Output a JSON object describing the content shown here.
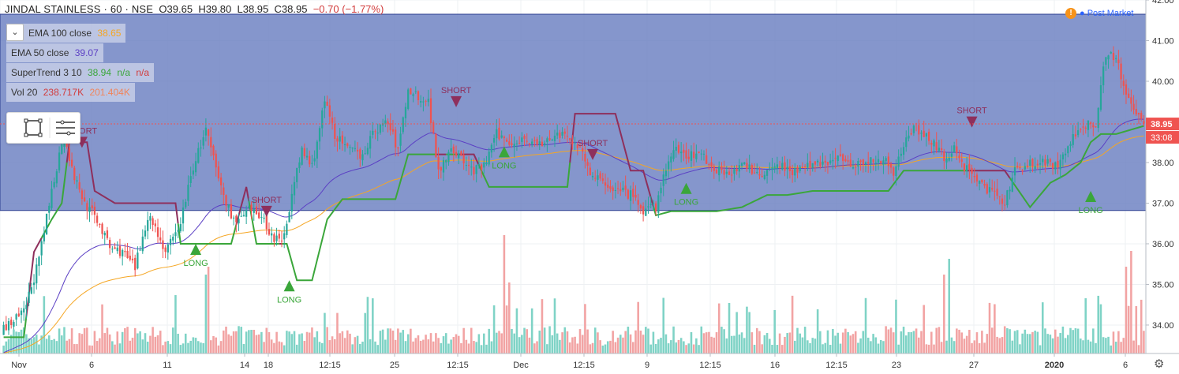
{
  "header": {
    "symbol": "JINDAL STAINLESS · 60 · NSE",
    "open_label": "O",
    "open": "39.65",
    "high_label": "H",
    "high": "39.80",
    "low_label": "L",
    "low": "38.95",
    "close_label": "C",
    "close": "38.95",
    "change": "−0.70 (−1.77%)"
  },
  "indicators": [
    {
      "name": "EMA 100 close",
      "values": [
        "38.65"
      ],
      "colors": [
        "#f5a623"
      ]
    },
    {
      "name": "EMA 50 close",
      "values": [
        "39.07"
      ],
      "colors": [
        "#5b3fc4"
      ]
    },
    {
      "name": "SuperTrend 3 10",
      "values": [
        "38.94",
        "n/a",
        "n/a"
      ],
      "colors": [
        "#3aa63a",
        "#3aa63a",
        "#d23b3b"
      ]
    },
    {
      "name": "Vol 20",
      "values": [
        "238.717K",
        "201.404K"
      ],
      "colors": [
        "#d23b3b",
        "#f0845a"
      ]
    }
  ],
  "status": {
    "post_market": "Post Market",
    "warning_glyph": "!"
  },
  "icons": {
    "collapse": "chevron-down-icon",
    "rectangle_tool": "rectangle-icon",
    "menu": "menu-lines-icon",
    "settings": "gear-icon"
  },
  "colors": {
    "up": "#26a69a",
    "down": "#ef5350",
    "rect_fill": "#6a7fc1",
    "ema100": "#f5a623",
    "ema50": "#5b3fc4",
    "st_up": "#3aa63a",
    "st_down": "#8e2f5c",
    "vol_up": "#7fd3c6",
    "vol_down": "#f2a3a3"
  },
  "chart_data": {
    "type": "candlestick",
    "y_range": [
      33.3,
      42.0
    ],
    "y_ticks": [
      "42.00",
      "41.00",
      "40.00",
      "39.00",
      "38.00",
      "37.00",
      "36.00",
      "35.00",
      "34.00"
    ],
    "x_tick_labels": [
      "Nov",
      "6",
      "11",
      "14",
      "18",
      "12:15",
      "25",
      "12:15",
      "Dec",
      "12:15",
      "9",
      "12:15",
      "16",
      "12:15",
      "23",
      "27",
      "2020",
      "6"
    ],
    "price_labels": {
      "last": "38.95",
      "countdown": "33:08"
    },
    "rectangle": {
      "top": 41.65,
      "bottom": 36.82
    },
    "close_waypoints": [
      [
        0,
        33.9
      ],
      [
        8,
        34.3
      ],
      [
        14,
        35.6
      ],
      [
        19,
        37.3
      ],
      [
        24,
        38.8
      ],
      [
        27,
        37.8
      ],
      [
        32,
        37.0
      ],
      [
        37,
        36.6
      ],
      [
        42,
        35.9
      ],
      [
        47,
        35.8
      ],
      [
        52,
        35.4
      ],
      [
        57,
        36.7
      ],
      [
        60,
        36.4
      ],
      [
        64,
        35.8
      ],
      [
        69,
        36.3
      ],
      [
        75,
        37.9
      ],
      [
        80,
        38.8
      ],
      [
        85,
        37.6
      ],
      [
        88,
        37.0
      ],
      [
        92,
        36.5
      ],
      [
        97,
        36.8
      ],
      [
        102,
        36.7
      ],
      [
        106,
        36.2
      ],
      [
        110,
        36.0
      ],
      [
        114,
        37.2
      ],
      [
        118,
        38.3
      ],
      [
        122,
        37.9
      ],
      [
        127,
        39.5
      ],
      [
        131,
        38.7
      ],
      [
        136,
        38.3
      ],
      [
        142,
        38.2
      ],
      [
        147,
        38.8
      ],
      [
        152,
        39.0
      ],
      [
        156,
        38.3
      ],
      [
        160,
        39.8
      ],
      [
        165,
        39.6
      ],
      [
        168,
        39.5
      ],
      [
        172,
        37.8
      ],
      [
        177,
        38.4
      ],
      [
        182,
        38.0
      ],
      [
        186,
        37.8
      ],
      [
        190,
        37.9
      ],
      [
        195,
        38.7
      ],
      [
        200,
        38.5
      ],
      [
        206,
        38.6
      ],
      [
        213,
        38.4
      ],
      [
        218,
        38.7
      ],
      [
        223,
        38.6
      ],
      [
        228,
        38.4
      ],
      [
        233,
        37.6
      ],
      [
        238,
        37.5
      ],
      [
        243,
        37.3
      ],
      [
        248,
        37.2
      ],
      [
        253,
        36.8
      ],
      [
        258,
        36.9
      ],
      [
        262,
        37.9
      ],
      [
        266,
        38.3
      ],
      [
        270,
        38.2
      ],
      [
        276,
        38.2
      ],
      [
        282,
        37.8
      ],
      [
        288,
        37.8
      ],
      [
        294,
        37.9
      ],
      [
        300,
        37.7
      ],
      [
        306,
        38.0
      ],
      [
        312,
        37.8
      ],
      [
        318,
        37.9
      ],
      [
        324,
        38.0
      ],
      [
        330,
        38.1
      ],
      [
        336,
        38.0
      ],
      [
        342,
        38.0
      ],
      [
        348,
        38.1
      ],
      [
        352,
        37.8
      ],
      [
        356,
        38.4
      ],
      [
        360,
        38.9
      ],
      [
        364,
        38.7
      ],
      [
        368,
        38.5
      ],
      [
        372,
        38.1
      ],
      [
        376,
        38.3
      ],
      [
        380,
        37.9
      ],
      [
        384,
        37.7
      ],
      [
        388,
        37.4
      ],
      [
        392,
        37.2
      ],
      [
        396,
        37.0
      ],
      [
        400,
        37.8
      ],
      [
        406,
        38.0
      ],
      [
        412,
        38.0
      ],
      [
        417,
        37.9
      ],
      [
        422,
        38.5
      ],
      [
        427,
        38.9
      ],
      [
        432,
        39.0
      ],
      [
        436,
        40.7
      ],
      [
        440,
        40.6
      ],
      [
        443,
        39.8
      ],
      [
        448,
        39.3
      ],
      [
        451,
        38.95
      ]
    ],
    "supertrend_waypoints": [
      [
        0,
        33.7
      ],
      [
        8,
        33.7
      ],
      [
        12,
        35.8
      ],
      [
        19,
        36.6
      ],
      [
        23,
        37.0
      ],
      [
        26,
        38.5
      ],
      [
        33,
        38.5
      ],
      [
        36,
        37.3
      ],
      [
        44,
        37.0
      ],
      [
        52,
        37.0
      ],
      [
        60,
        37.0
      ],
      [
        68,
        37.0
      ],
      [
        70,
        36.0
      ],
      [
        82,
        36.0
      ],
      [
        90,
        36.0
      ],
      [
        96,
        37.4
      ],
      [
        100,
        36.0
      ],
      [
        108,
        36.0
      ],
      [
        112,
        36.0
      ],
      [
        116,
        35.1
      ],
      [
        122,
        35.1
      ],
      [
        128,
        36.6
      ],
      [
        134,
        37.1
      ],
      [
        140,
        37.1
      ],
      [
        146,
        37.1
      ],
      [
        155,
        37.1
      ],
      [
        160,
        38.2
      ],
      [
        170,
        38.2
      ],
      [
        176,
        38.2
      ],
      [
        180,
        38.2
      ],
      [
        186,
        38.2
      ],
      [
        192,
        37.4
      ],
      [
        203,
        37.4
      ],
      [
        210,
        37.4
      ],
      [
        218,
        37.4
      ],
      [
        223,
        37.4
      ],
      [
        226,
        39.2
      ],
      [
        236,
        39.2
      ],
      [
        242,
        39.2
      ],
      [
        248,
        37.8
      ],
      [
        253,
        37.8
      ],
      [
        258,
        36.7
      ],
      [
        264,
        36.8
      ],
      [
        272,
        36.8
      ],
      [
        282,
        36.8
      ],
      [
        292,
        36.9
      ],
      [
        302,
        37.2
      ],
      [
        310,
        37.2
      ],
      [
        320,
        37.3
      ],
      [
        330,
        37.3
      ],
      [
        340,
        37.3
      ],
      [
        350,
        37.3
      ],
      [
        356,
        37.8
      ],
      [
        366,
        37.8
      ],
      [
        376,
        37.8
      ],
      [
        386,
        37.8
      ],
      [
        396,
        37.8
      ],
      [
        406,
        36.9
      ],
      [
        414,
        37.5
      ],
      [
        420,
        37.7
      ],
      [
        426,
        38.0
      ],
      [
        430,
        38.5
      ],
      [
        434,
        38.7
      ],
      [
        440,
        38.7
      ],
      [
        451,
        38.9
      ]
    ],
    "signals": [
      {
        "type": "SHORT",
        "index": 31,
        "price": 38.4
      },
      {
        "type": "SHORT",
        "index": 104,
        "price": 36.7
      },
      {
        "type": "LONG",
        "index": 76,
        "price": 36.0
      },
      {
        "type": "LONG",
        "index": 113,
        "price": 35.1
      },
      {
        "type": "SHORT",
        "index": 179,
        "price": 39.4
      },
      {
        "type": "LONG",
        "index": 198,
        "price": 38.4
      },
      {
        "type": "SHORT",
        "index": 233,
        "price": 38.1
      },
      {
        "type": "LONG",
        "index": 270,
        "price": 37.5
      },
      {
        "type": "SHORT",
        "index": 383,
        "price": 38.9
      },
      {
        "type": "LONG",
        "index": 430,
        "price": 37.3
      }
    ],
    "volume_spikes": [
      [
        80,
        1.0
      ],
      [
        81,
        1.1
      ],
      [
        198,
        1.5
      ],
      [
        200,
        0.9
      ],
      [
        372,
        1.0
      ],
      [
        374,
        1.2
      ],
      [
        428,
        0.7
      ],
      [
        444,
        1.1
      ],
      [
        446,
        1.3
      ],
      [
        448,
        0.6
      ]
    ]
  }
}
